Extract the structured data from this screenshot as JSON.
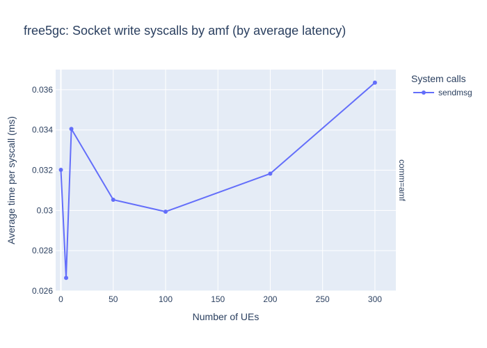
{
  "chart_data": {
    "type": "line",
    "title": "free5gc: Socket write syscalls by amf (by average latency)",
    "xlabel": "Number of UEs",
    "ylabel": "Average time per syscall (ms)",
    "xlim": [
      -5,
      320
    ],
    "ylim": [
      0.026,
      0.037
    ],
    "x_ticks": [
      0,
      50,
      100,
      150,
      200,
      250,
      300
    ],
    "x_tick_labels": [
      "0",
      "50",
      "100",
      "150",
      "200",
      "250",
      "300"
    ],
    "y_ticks": [
      0.026,
      0.028,
      0.03,
      0.032,
      0.034,
      0.036
    ],
    "y_tick_labels": [
      "0.026",
      "0.028",
      "0.03",
      "0.032",
      "0.034",
      "0.036"
    ],
    "legend_title": "System calls",
    "facet_label": "comm=amf",
    "series": [
      {
        "name": "sendmsg",
        "color": "#636efa",
        "x": [
          0,
          5,
          10,
          50,
          100,
          200,
          300
        ],
        "y": [
          0.03202,
          0.02665,
          0.03405,
          0.03053,
          0.02994,
          0.03183,
          0.03635
        ]
      }
    ]
  }
}
